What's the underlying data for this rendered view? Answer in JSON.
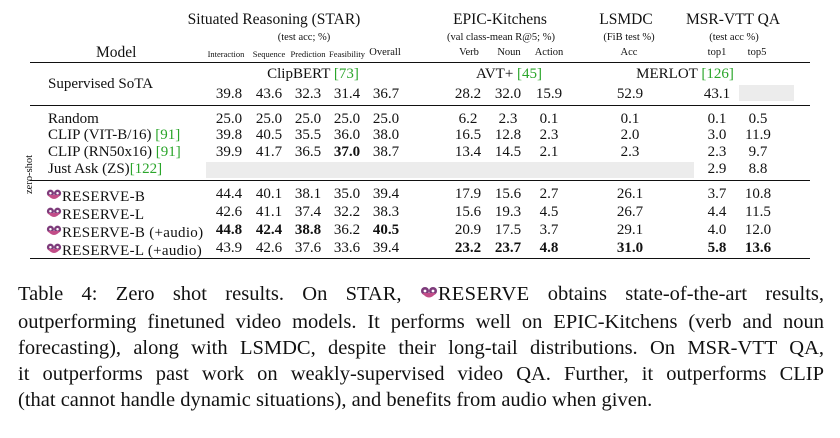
{
  "header": {
    "model_label": "Model",
    "groups": [
      {
        "name": "Situated Reasoning (STAR)",
        "metric": "(test acc; %)",
        "cols": [
          "Interaction",
          "Sequence",
          "Prediction",
          "Feasibility",
          "Overall"
        ]
      },
      {
        "name": "EPIC-Kitchens",
        "metric": "(val class-mean R@5; %)",
        "cols": [
          "Verb",
          "Noun",
          "Action"
        ]
      },
      {
        "name": "LSMDC",
        "metric": "(FiB test %)",
        "cols": [
          "Acc"
        ]
      },
      {
        "name": "MSR-VTT QA",
        "metric": "(test acc %)",
        "cols": [
          "top1",
          "top5"
        ]
      }
    ]
  },
  "sota": {
    "label": "Supervised SoTA",
    "star_source": "ClipBERT",
    "star_cite": "[73]",
    "epic_source": "AVT+",
    "epic_cite": "[45]",
    "lsmdc_msr_source": "MERLOT",
    "lsmdc_msr_cite": "[126]",
    "values": [
      "39.8",
      "43.6",
      "32.3",
      "31.4",
      "36.7",
      "28.2",
      "32.0",
      "15.9",
      "52.9",
      "43.1",
      ""
    ]
  },
  "zero_shot_label": "zero-shot",
  "baselines": [
    {
      "name": "Random",
      "cite": "",
      "values": [
        "25.0",
        "25.0",
        "25.0",
        "25.0",
        "25.0",
        "6.2",
        "2.3",
        "0.1",
        "0.1",
        "0.1",
        "0.5"
      ]
    },
    {
      "name": "CLIP (VIT-B/16) ",
      "cite": "[91]",
      "values": [
        "39.8",
        "40.5",
        "35.5",
        "36.0",
        "38.0",
        "16.5",
        "12.8",
        "2.3",
        "2.0",
        "3.0",
        "11.9"
      ]
    },
    {
      "name": "CLIP (RN50x16) ",
      "cite": "[91]",
      "values": [
        "39.9",
        "41.7",
        "36.5",
        "37.0",
        "38.7",
        "13.4",
        "14.5",
        "2.1",
        "2.3",
        "2.3",
        "9.7"
      ]
    },
    {
      "name": "Just Ask (ZS)",
      "cite": "[122]",
      "values": [
        "",
        "",
        "",
        "",
        "",
        "",
        "",
        "",
        "",
        "2.9",
        "8.8"
      ]
    }
  ],
  "reserve_rows": [
    {
      "name": "RESERVE-B",
      "values": [
        "44.4",
        "40.1",
        "38.1",
        "35.0",
        "39.4",
        "17.9",
        "15.6",
        "2.7",
        "26.1",
        "3.7",
        "10.8"
      ]
    },
    {
      "name": "RESERVE-L",
      "values": [
        "42.6",
        "41.1",
        "37.4",
        "32.2",
        "38.3",
        "15.6",
        "19.3",
        "4.5",
        "26.7",
        "4.4",
        "11.5"
      ]
    },
    {
      "name": "RESERVE-B (+audio)",
      "values": [
        "44.8",
        "42.4",
        "38.8",
        "36.2",
        "40.5",
        "20.9",
        "17.5",
        "3.7",
        "29.1",
        "4.0",
        "12.0"
      ]
    },
    {
      "name": "RESERVE-L (+audio)",
      "values": [
        "43.9",
        "42.6",
        "37.6",
        "33.6",
        "39.4",
        "23.2",
        "23.7",
        "4.8",
        "31.0",
        "5.8",
        "13.6"
      ]
    }
  ],
  "caption": {
    "lines": [
      [
        "Table 4:  Zero shot results.  On STAR, ",
        "RESERVE",
        " obtains state-of-the-art results,"
      ],
      "outperforming finetuned video models. It performs well on EPIC-Kitchens (verb and noun",
      "forecasting), along with LSMDC, despite their long-tail distributions. On MSR-VTT QA,",
      "it outperforms past work on weakly-supervised video QA. Further, it outperforms CLIP",
      "(that cannot handle dynamic situations), and benefits from audio when given."
    ]
  },
  "colors": {
    "cite": "#2aa52a",
    "shade": "#ececec",
    "badge": "#7d3b7b"
  }
}
